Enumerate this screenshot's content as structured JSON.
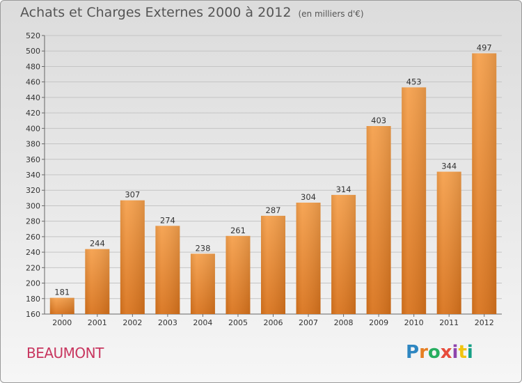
{
  "title": "Achats et Charges Externes 2000 à 2012",
  "subtitle": "(en milliers d'€)",
  "place": "BEAUMONT",
  "logo": {
    "text": "Proxiti",
    "colors": [
      "#2e86c1",
      "#e67e22",
      "#27ae60",
      "#e74c3c",
      "#8e44ad",
      "#f1c40f",
      "#16a085"
    ]
  },
  "chart_data": {
    "type": "bar",
    "categories": [
      "2000",
      "2001",
      "2002",
      "2003",
      "2004",
      "2005",
      "2006",
      "2007",
      "2008",
      "2009",
      "2010",
      "2011",
      "2012"
    ],
    "values": [
      181,
      244,
      307,
      274,
      238,
      261,
      287,
      304,
      314,
      403,
      453,
      344,
      497
    ],
    "ylim": [
      160,
      520
    ],
    "yticks": [
      160,
      180,
      200,
      220,
      240,
      260,
      280,
      300,
      320,
      340,
      360,
      380,
      400,
      420,
      440,
      460,
      480,
      500,
      520
    ],
    "grid": true,
    "bar_color_top": "#f5a04c",
    "bar_color_bottom": "#d9731c"
  }
}
